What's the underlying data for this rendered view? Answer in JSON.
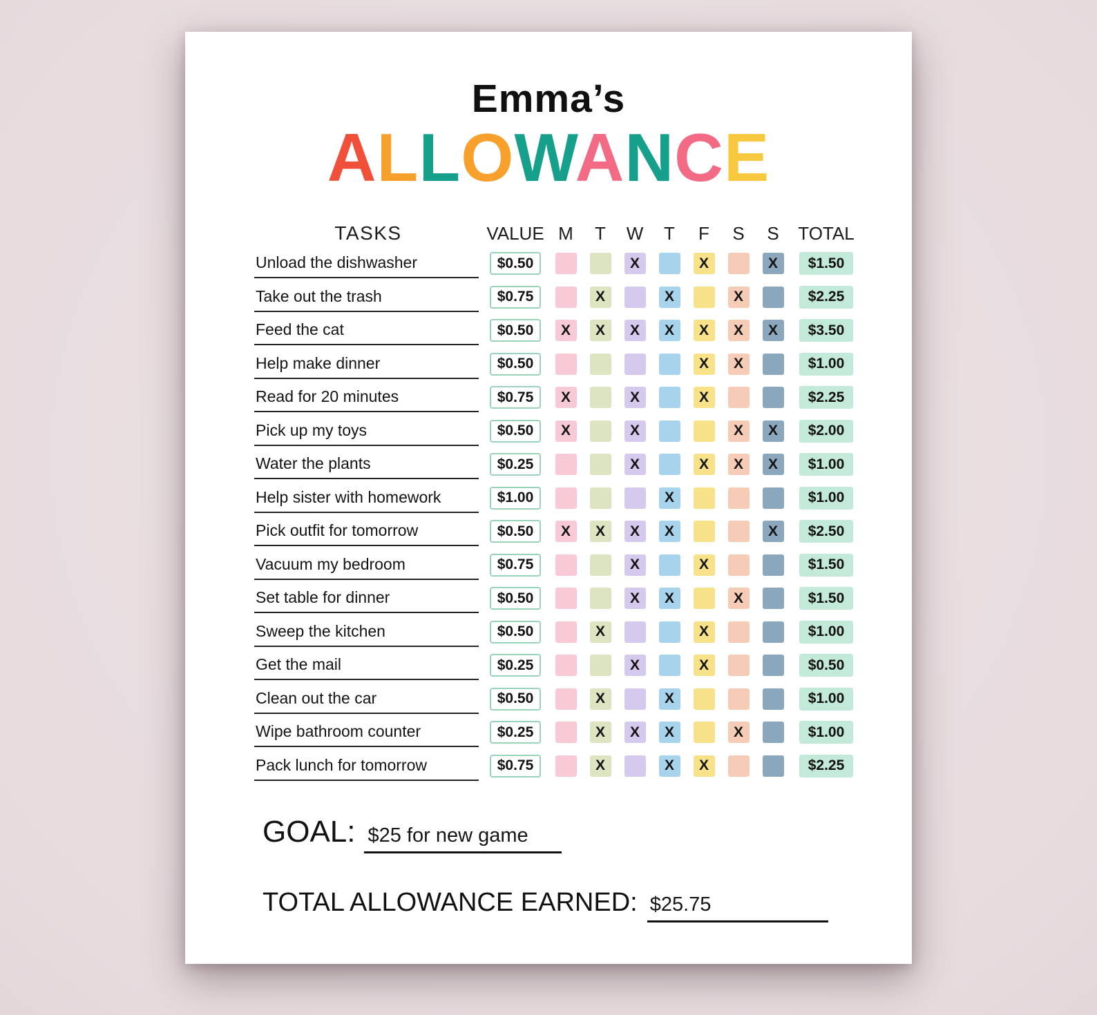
{
  "header": {
    "name": "Emma’s",
    "title_letters": [
      {
        "char": "A",
        "color": "#f0503a"
      },
      {
        "char": "L",
        "color": "#f7a02c"
      },
      {
        "char": "L",
        "color": "#16a08c"
      },
      {
        "char": "O",
        "color": "#f7a02c"
      },
      {
        "char": "W",
        "color": "#16a08c"
      },
      {
        "char": "A",
        "color": "#f26a83"
      },
      {
        "char": "N",
        "color": "#16a08c"
      },
      {
        "char": "C",
        "color": "#f26a83"
      },
      {
        "char": "E",
        "color": "#f8c83e"
      }
    ]
  },
  "table": {
    "headers": {
      "tasks": "TASKS",
      "value": "VALUE",
      "days": [
        "M",
        "T",
        "W",
        "T",
        "F",
        "S",
        "S"
      ],
      "total": "TOTAL"
    },
    "day_colors": [
      "#f8cad6",
      "#dde4c1",
      "#d6c9ee",
      "#a8d3ed",
      "#f8e289",
      "#f7ccb6",
      "#8ba7bd"
    ],
    "check_symbol": "X",
    "value_box_border": "#99d4ba",
    "total_box_bg": "#c3e9d9",
    "rows": [
      {
        "task": "Unload the dishwasher",
        "value": "$0.50",
        "checks": [
          0,
          0,
          1,
          0,
          1,
          0,
          1
        ],
        "total": "$1.50"
      },
      {
        "task": "Take out the trash",
        "value": "$0.75",
        "checks": [
          0,
          1,
          0,
          1,
          0,
          1,
          0
        ],
        "total": "$2.25"
      },
      {
        "task": "Feed the cat",
        "value": "$0.50",
        "checks": [
          1,
          1,
          1,
          1,
          1,
          1,
          1
        ],
        "total": "$3.50"
      },
      {
        "task": "Help make dinner",
        "value": "$0.50",
        "checks": [
          0,
          0,
          0,
          0,
          1,
          1,
          0
        ],
        "total": "$1.00"
      },
      {
        "task": "Read for 20 minutes",
        "value": "$0.75",
        "checks": [
          1,
          0,
          1,
          0,
          1,
          0,
          0
        ],
        "total": "$2.25"
      },
      {
        "task": "Pick up my toys",
        "value": "$0.50",
        "checks": [
          1,
          0,
          1,
          0,
          0,
          1,
          1
        ],
        "total": "$2.00"
      },
      {
        "task": "Water the plants",
        "value": "$0.25",
        "checks": [
          0,
          0,
          1,
          0,
          1,
          1,
          1
        ],
        "total": "$1.00"
      },
      {
        "task": "Help sister with homework",
        "value": "$1.00",
        "checks": [
          0,
          0,
          0,
          1,
          0,
          0,
          0
        ],
        "total": "$1.00"
      },
      {
        "task": "Pick outfit for tomorrow",
        "value": "$0.50",
        "checks": [
          1,
          1,
          1,
          1,
          0,
          0,
          1
        ],
        "total": "$2.50"
      },
      {
        "task": "Vacuum my bedroom",
        "value": "$0.75",
        "checks": [
          0,
          0,
          1,
          0,
          1,
          0,
          0
        ],
        "total": "$1.50"
      },
      {
        "task": "Set table for dinner",
        "value": "$0.50",
        "checks": [
          0,
          0,
          1,
          1,
          0,
          1,
          0
        ],
        "total": "$1.50"
      },
      {
        "task": "Sweep the kitchen",
        "value": "$0.50",
        "checks": [
          0,
          1,
          0,
          0,
          1,
          0,
          0
        ],
        "total": "$1.00"
      },
      {
        "task": "Get the mail",
        "value": "$0.25",
        "checks": [
          0,
          0,
          1,
          0,
          1,
          0,
          0
        ],
        "total": "$0.50"
      },
      {
        "task": "Clean out the car",
        "value": "$0.50",
        "checks": [
          0,
          1,
          0,
          1,
          0,
          0,
          0
        ],
        "total": "$1.00"
      },
      {
        "task": "Wipe bathroom counter",
        "value": "$0.25",
        "checks": [
          0,
          1,
          1,
          1,
          0,
          1,
          0
        ],
        "total": "$1.00"
      },
      {
        "task": "Pack lunch for tomorrow",
        "value": "$0.75",
        "checks": [
          0,
          1,
          0,
          1,
          1,
          0,
          0
        ],
        "total": "$2.25"
      }
    ]
  },
  "goal": {
    "label": "GOAL:",
    "value": "$25 for new game"
  },
  "total_earned": {
    "label": "TOTAL ALLOWANCE EARNED:",
    "value": "$25.75"
  }
}
